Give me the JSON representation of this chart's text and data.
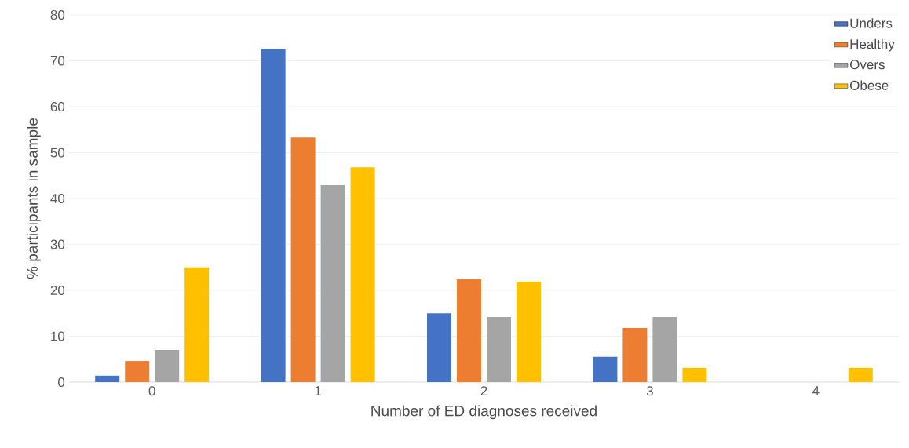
{
  "chart_data": {
    "type": "bar",
    "xlabel": "Number of ED diagnoses received",
    "ylabel": "% participants in sample",
    "categories": [
      "0",
      "1",
      "2",
      "3",
      "4"
    ],
    "series": [
      {
        "name": "Unders",
        "color": "#4472c4",
        "values": [
          1.4,
          72.6,
          15.0,
          5.5,
          0
        ]
      },
      {
        "name": "Healthy",
        "color": "#ed7d31",
        "values": [
          4.6,
          53.3,
          22.4,
          11.8,
          0
        ]
      },
      {
        "name": "Overs",
        "color": "#a5a5a5",
        "values": [
          7.0,
          42.9,
          14.2,
          14.2,
          0
        ]
      },
      {
        "name": "Obese",
        "color": "#ffc000",
        "values": [
          25.0,
          46.8,
          21.9,
          3.1,
          3.1
        ]
      }
    ],
    "ylim": [
      0,
      80
    ],
    "yticks": [
      0,
      10,
      20,
      30,
      40,
      50,
      60,
      70,
      80
    ],
    "grid": "y",
    "legend": "top right"
  }
}
